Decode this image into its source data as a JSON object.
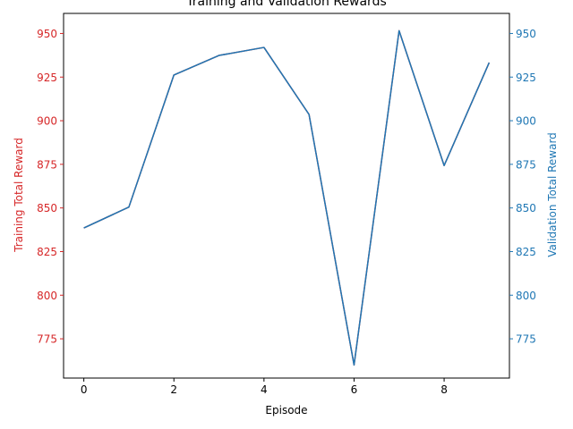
{
  "chart_data": {
    "type": "line",
    "title": "Training and Validation Rewards",
    "xlabel": "Episode",
    "ylabel_left": "Training Total Reward",
    "ylabel_right": "Validation Total Reward",
    "x": [
      0,
      1,
      2,
      3,
      4,
      5,
      6,
      7,
      8,
      9
    ],
    "xlim": [
      -0.45,
      9.45
    ],
    "xticks": [
      0,
      2,
      4,
      6,
      8
    ],
    "ylim": [
      752.5,
      961.5
    ],
    "yticks": [
      775,
      800,
      825,
      850,
      875,
      900,
      925,
      950
    ],
    "grid": false,
    "series": [
      {
        "name": "Training Total Reward",
        "axis": "left",
        "color": "#d62728",
        "values": [
          838.5,
          850.5,
          926.2,
          937.4,
          942.0,
          903.6,
          760.0,
          951.6,
          874.3,
          933.3
        ]
      },
      {
        "name": "Validation Total Reward",
        "axis": "right",
        "color": "#1f77b4",
        "values": [
          838.5,
          850.5,
          926.2,
          937.4,
          942.0,
          903.6,
          760.0,
          951.6,
          874.3,
          933.3
        ]
      }
    ],
    "left_axis_color": "#d62728",
    "right_axis_color": "#1f77b4"
  }
}
